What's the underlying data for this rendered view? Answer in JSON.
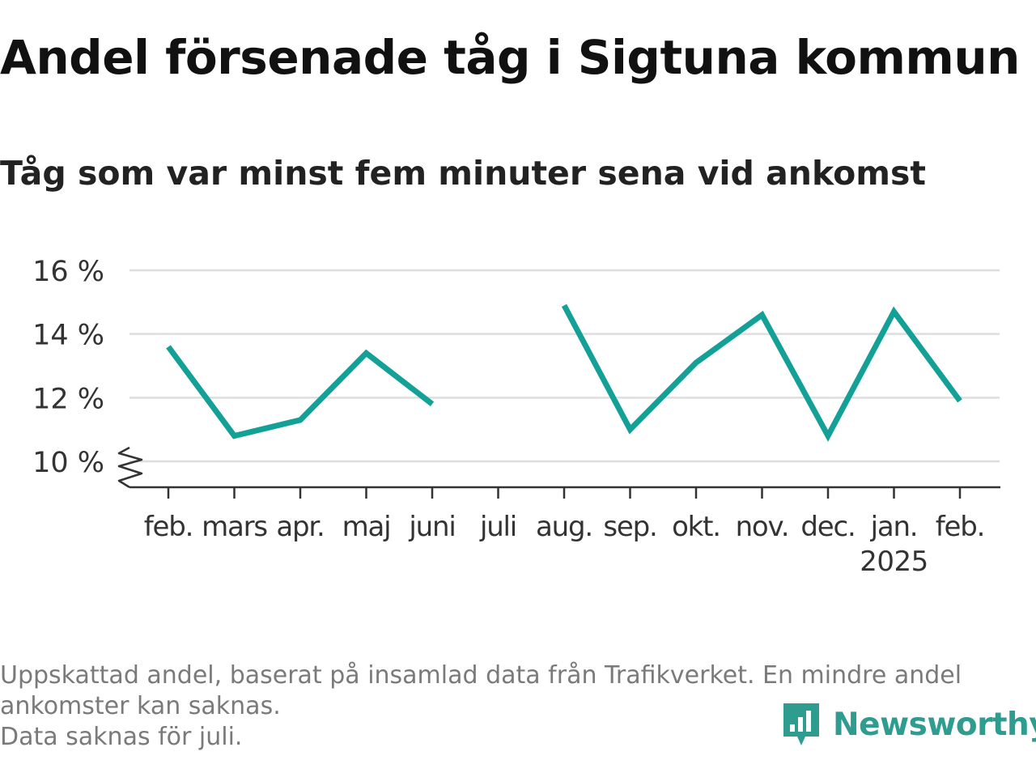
{
  "header": {
    "title": "Andel försenade tåg i Sigtuna kommun",
    "subtitle": "Tåg som var minst fem minuter sena vid ankomst"
  },
  "footer": {
    "notes": [
      "Uppskattad andel, baserat på insamlad data från Trafikverket. En mindre andel",
      "ankomster kan saknas.",
      "Data saknas för juli."
    ],
    "brand": "Newsworthy"
  },
  "colors": {
    "line": "#13a197",
    "grid": "#dedede",
    "axis": "#333333",
    "brand": "#2e9c8f",
    "text": "#111111",
    "muted": "#7a7a7a"
  },
  "chart_data": {
    "type": "line",
    "categories": [
      "feb.",
      "mars",
      "apr.",
      "maj",
      "juni",
      "juli",
      "aug.",
      "sep.",
      "okt.",
      "nov.",
      "dec.",
      "jan.",
      "feb."
    ],
    "category_sublabels": [
      "",
      "",
      "",
      "",
      "",
      "",
      "",
      "",
      "",
      "",
      "",
      "2025",
      ""
    ],
    "series": [
      {
        "values": [
          13.6,
          10.8,
          11.3,
          13.4,
          11.8,
          null,
          14.9,
          11.0,
          13.1,
          14.6,
          10.8,
          14.7,
          11.9
        ]
      }
    ],
    "yticks": [
      10,
      12,
      14,
      16
    ],
    "ytick_labels": [
      "10 %",
      "12 %",
      "14 %",
      "16 %"
    ],
    "ylim": [
      10,
      16
    ],
    "y_axis_break": true,
    "grid": true,
    "xlabel": "",
    "ylabel": ""
  }
}
